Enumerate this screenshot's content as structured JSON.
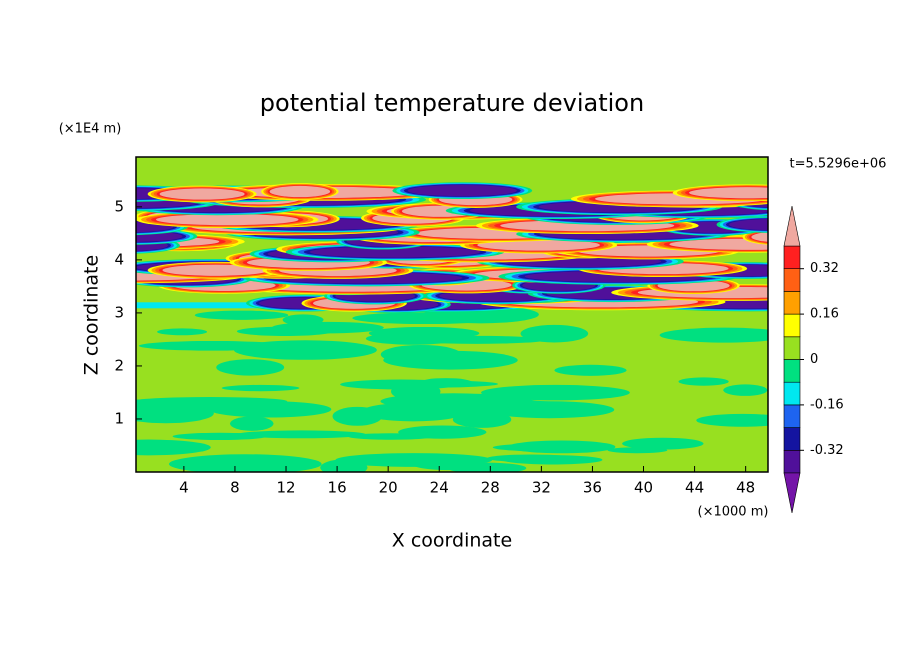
{
  "chart_data": {
    "type": "contour",
    "title": "potential temperature deviation",
    "xlabel": "X coordinate",
    "ylabel": "Z coordinate",
    "xunit": "(×1000 m)",
    "yunit": "(×1E4 m)",
    "annotation": "t=5.5296e+06",
    "xlim": [
      0.25,
      49.75
    ],
    "xticks": [
      4,
      8,
      12,
      16,
      20,
      24,
      28,
      32,
      36,
      40,
      44,
      48
    ],
    "ylim": [
      0,
      5.94
    ],
    "yticks": [
      1,
      2,
      3,
      4,
      5
    ],
    "colorbar": {
      "levels": [
        -0.4,
        -0.32,
        -0.24,
        -0.16,
        -0.08,
        0,
        0.08,
        0.16,
        0.24,
        0.32,
        0.4
      ],
      "colors": [
        "#7414a8",
        "#50109a",
        "#1414a0",
        "#1e64f0",
        "#00e8f0",
        "#00e080",
        "#98e020",
        "#ffff00",
        "#ffa000",
        "#ff6014",
        "#ff2020",
        "#f0a8a0"
      ],
      "ticks": [
        -0.32,
        -0.16,
        0,
        0.16,
        0.32
      ]
    }
  }
}
